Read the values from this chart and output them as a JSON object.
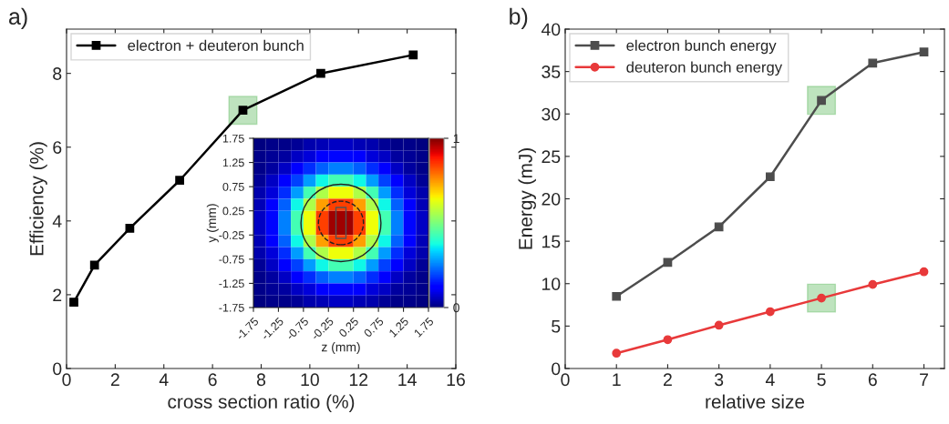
{
  "chart_data": [
    {
      "type": "line",
      "title": "a)",
      "xlabel": "cross section ratio (%)",
      "ylabel": "Efficiency (%)",
      "xlim": [
        0,
        16
      ],
      "xticks": [
        0,
        2,
        4,
        6,
        8,
        10,
        12,
        14,
        16
      ],
      "ylim": [
        0,
        9.2
      ],
      "yticks": [
        0,
        2,
        4,
        6,
        8
      ],
      "legend": "top left",
      "grid": false,
      "series": [
        {
          "name": "electron + deuteron bunch",
          "color": "#000000",
          "marker": "square",
          "x": [
            0.3,
            1.15,
            2.6,
            4.65,
            7.25,
            10.45,
            14.25
          ],
          "values": [
            1.8,
            2.8,
            3.8,
            5.1,
            7.0,
            8.0,
            8.5
          ]
        }
      ]
    },
    {
      "type": "heatmap",
      "xlabel": "z (mm)",
      "ylabel": "y (mm)",
      "xlim": [
        -1.75,
        1.75
      ],
      "ylim": [
        -1.75,
        1.75
      ],
      "xticks": [
        -1.75,
        -1.25,
        -0.75,
        -0.25,
        0.25,
        0.75,
        1.25,
        1.75
      ],
      "yticks": [
        -1.75,
        -1.25,
        -0.75,
        -0.25,
        0.25,
        0.75,
        1.25,
        1.75
      ],
      "clim": [
        0,
        1
      ],
      "cticks": [
        0,
        1
      ],
      "cells": [
        [
          0.0,
          0.01,
          0.01,
          0.02,
          0.04,
          0.05,
          0.06,
          0.06,
          0.05,
          0.04,
          0.02,
          0.01,
          0.01,
          0.0
        ],
        [
          0.01,
          0.02,
          0.03,
          0.06,
          0.08,
          0.11,
          0.13,
          0.13,
          0.11,
          0.08,
          0.06,
          0.03,
          0.02,
          0.01
        ],
        [
          0.01,
          0.03,
          0.06,
          0.11,
          0.17,
          0.22,
          0.25,
          0.25,
          0.22,
          0.17,
          0.11,
          0.06,
          0.03,
          0.01
        ],
        [
          0.02,
          0.06,
          0.11,
          0.19,
          0.28,
          0.37,
          0.43,
          0.43,
          0.37,
          0.28,
          0.19,
          0.11,
          0.06,
          0.02
        ],
        [
          0.04,
          0.08,
          0.17,
          0.28,
          0.43,
          0.56,
          0.64,
          0.64,
          0.56,
          0.43,
          0.28,
          0.17,
          0.08,
          0.04
        ],
        [
          0.05,
          0.11,
          0.22,
          0.37,
          0.56,
          0.74,
          0.84,
          0.84,
          0.74,
          0.56,
          0.37,
          0.22,
          0.11,
          0.05
        ],
        [
          0.06,
          0.13,
          0.25,
          0.43,
          0.64,
          0.84,
          0.97,
          0.97,
          0.84,
          0.64,
          0.43,
          0.25,
          0.13,
          0.06
        ],
        [
          0.06,
          0.13,
          0.25,
          0.43,
          0.64,
          0.84,
          0.97,
          0.97,
          0.84,
          0.64,
          0.43,
          0.25,
          0.13,
          0.06
        ],
        [
          0.05,
          0.11,
          0.22,
          0.37,
          0.56,
          0.74,
          0.84,
          0.84,
          0.74,
          0.56,
          0.37,
          0.22,
          0.11,
          0.05
        ],
        [
          0.04,
          0.08,
          0.17,
          0.28,
          0.43,
          0.56,
          0.64,
          0.64,
          0.56,
          0.43,
          0.28,
          0.17,
          0.08,
          0.04
        ],
        [
          0.02,
          0.06,
          0.11,
          0.19,
          0.28,
          0.37,
          0.43,
          0.43,
          0.37,
          0.28,
          0.19,
          0.11,
          0.06,
          0.02
        ],
        [
          0.01,
          0.03,
          0.06,
          0.11,
          0.17,
          0.22,
          0.25,
          0.25,
          0.22,
          0.17,
          0.11,
          0.06,
          0.03,
          0.01
        ],
        [
          0.01,
          0.02,
          0.03,
          0.06,
          0.08,
          0.11,
          0.13,
          0.13,
          0.11,
          0.08,
          0.06,
          0.03,
          0.02,
          0.01
        ],
        [
          0.0,
          0.01,
          0.01,
          0.02,
          0.04,
          0.05,
          0.06,
          0.06,
          0.05,
          0.04,
          0.02,
          0.01,
          0.01,
          0.0
        ]
      ]
    },
    {
      "type": "line",
      "title": "b)",
      "xlabel": "relative size",
      "ylabel": "Energy (mJ)",
      "xlim": [
        0,
        7.4
      ],
      "xticks": [
        0,
        1,
        2,
        3,
        4,
        5,
        6,
        7
      ],
      "ylim": [
        0,
        40
      ],
      "yticks": [
        0,
        5,
        10,
        15,
        20,
        25,
        30,
        35,
        40
      ],
      "legend": "top left",
      "grid": false,
      "series": [
        {
          "name": "electron bunch energy",
          "color": "#4d4d4d",
          "marker": "square",
          "x": [
            1,
            2,
            3,
            4,
            5,
            6,
            7
          ],
          "values": [
            8.5,
            12.5,
            16.7,
            22.6,
            31.6,
            36.0,
            37.3
          ]
        },
        {
          "name": "deuteron bunch energy",
          "color": "#e8393a",
          "marker": "circle",
          "x": [
            1,
            2,
            3,
            4,
            5,
            6,
            7
          ],
          "values": [
            1.8,
            3.4,
            5.1,
            6.7,
            8.3,
            9.9,
            11.4
          ]
        }
      ]
    }
  ]
}
